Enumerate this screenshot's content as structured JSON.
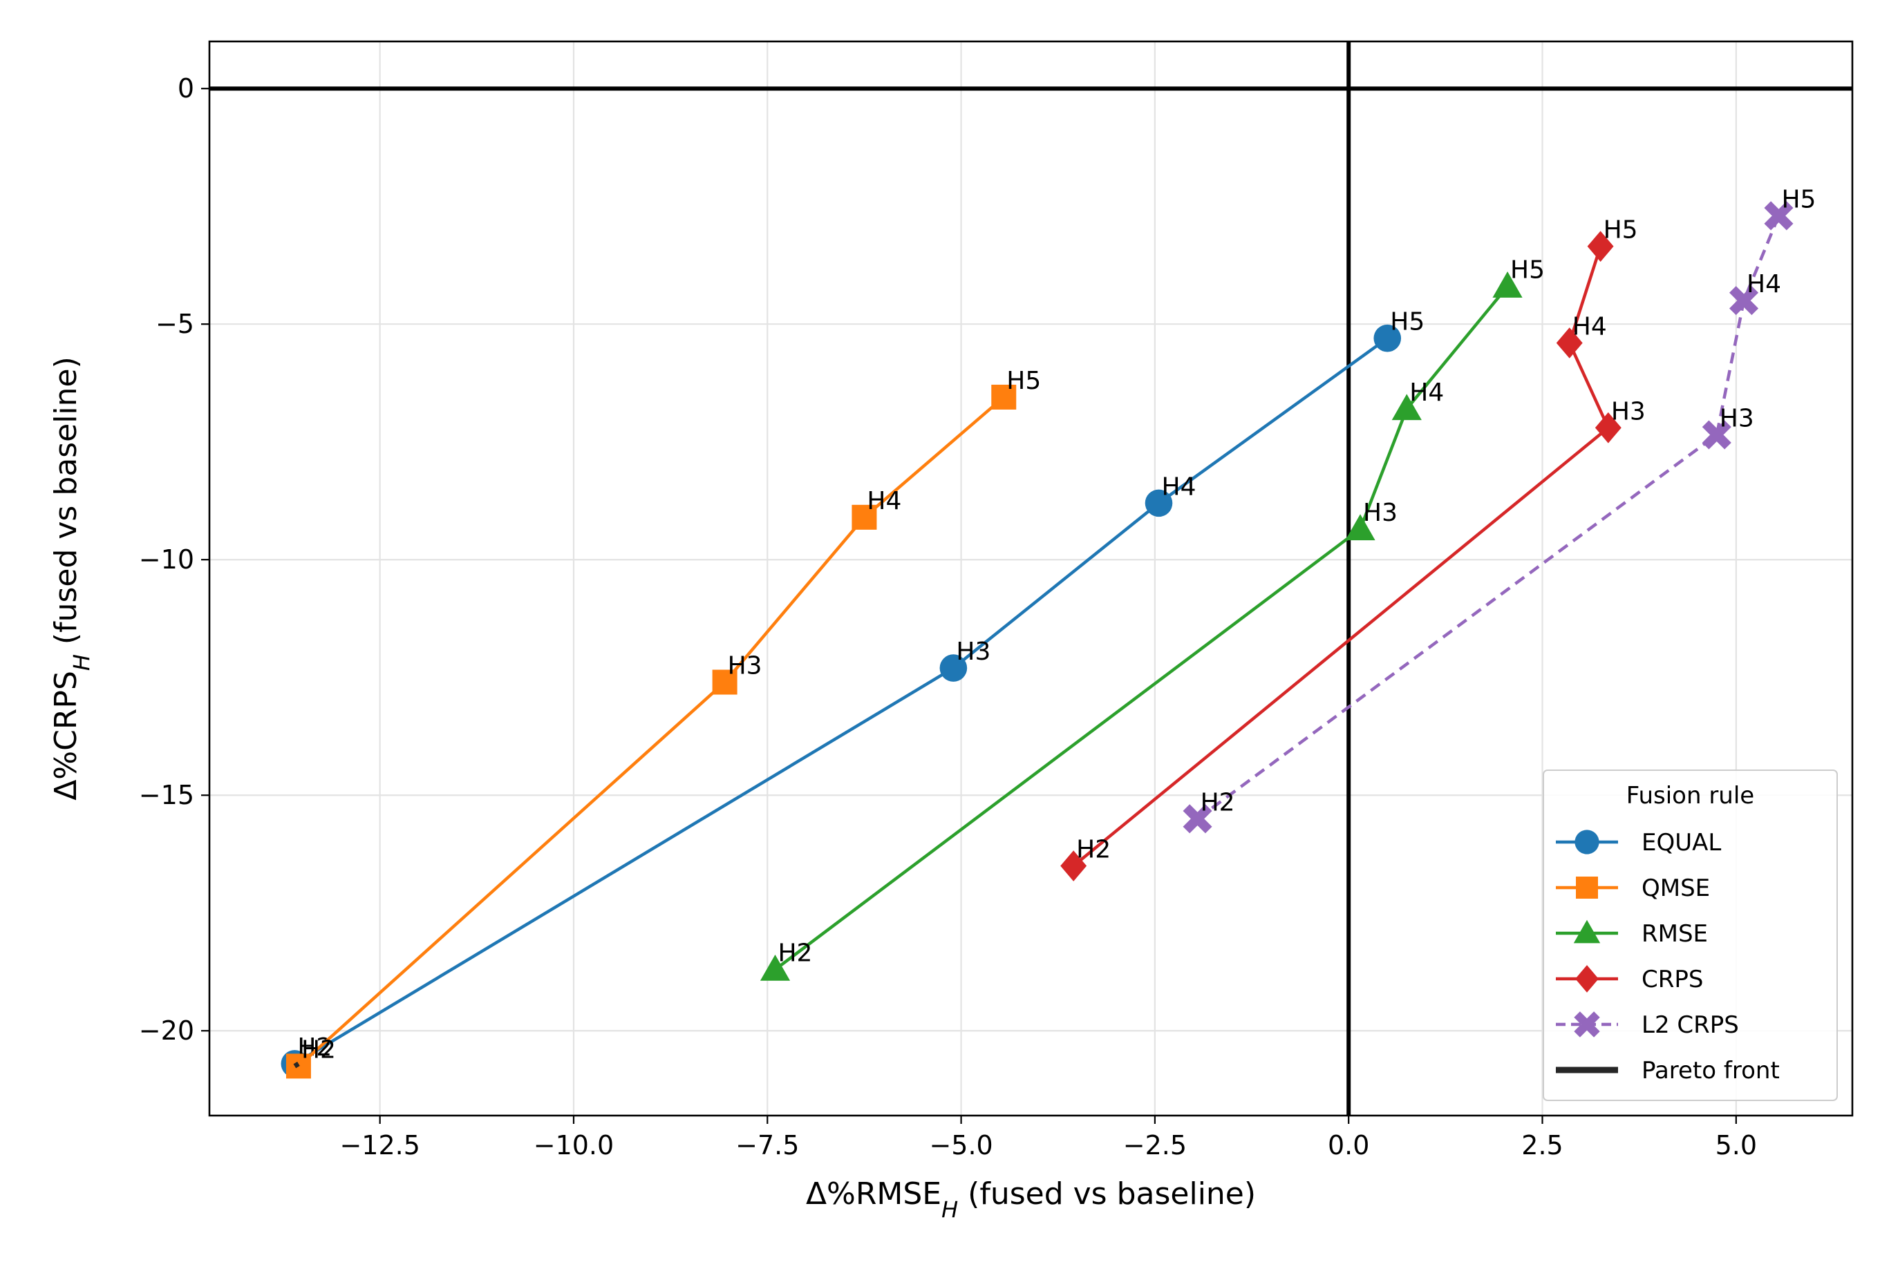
{
  "chart_data": {
    "type": "line",
    "title": "",
    "xlabel": "Δ%RMSE_H (fused vs baseline)",
    "ylabel": "Δ%CRPS_H (fused vs baseline)",
    "xlabel_main": "Δ%RMSE",
    "xlabel_sub": "H",
    "xlabel_rest": " (fused vs baseline)",
    "ylabel_main": "Δ%CRPS",
    "ylabel_sub": "H",
    "ylabel_rest": " (fused vs baseline)",
    "xlim": [
      -14.7,
      6.5
    ],
    "ylim": [
      -21.8,
      1.0
    ],
    "xticks": [
      -12.5,
      -10.0,
      -7.5,
      -5.0,
      -2.5,
      0.0,
      2.5,
      5.0
    ],
    "xtick_labels": [
      "−12.5",
      "−10.0",
      "−7.5",
      "−5.0",
      "−2.5",
      "0.0",
      "2.5",
      "5.0"
    ],
    "yticks": [
      0,
      -5,
      -10,
      -15,
      -20
    ],
    "ytick_labels": [
      "0",
      "−5",
      "−10",
      "−15",
      "−20"
    ],
    "grid": true,
    "reference_lines": {
      "x": 0,
      "y": 0
    },
    "legend": {
      "title": "Fusion rule",
      "position": "lower-right"
    },
    "series": [
      {
        "name": "EQUAL",
        "color": "#1f77b4",
        "marker": "circle",
        "dashed": false,
        "points": [
          {
            "label": "H2",
            "x": -13.6,
            "y": -20.7
          },
          {
            "label": "H3",
            "x": -5.1,
            "y": -12.3
          },
          {
            "label": "H4",
            "x": -2.45,
            "y": -8.8
          },
          {
            "label": "H5",
            "x": 0.5,
            "y": -5.3
          }
        ]
      },
      {
        "name": "QMSE",
        "color": "#ff7f0e",
        "marker": "square",
        "dashed": false,
        "points": [
          {
            "label": "H2",
            "x": -13.55,
            "y": -20.75
          },
          {
            "label": "H3",
            "x": -8.05,
            "y": -12.6
          },
          {
            "label": "H4",
            "x": -6.25,
            "y": -9.1
          },
          {
            "label": "H5",
            "x": -4.45,
            "y": -6.55
          }
        ]
      },
      {
        "name": "RMSE",
        "color": "#2ca02c",
        "marker": "triangle",
        "dashed": false,
        "points": [
          {
            "label": "H2",
            "x": -7.4,
            "y": -18.7
          },
          {
            "label": "H3",
            "x": 0.15,
            "y": -9.35
          },
          {
            "label": "H4",
            "x": 0.75,
            "y": -6.8
          },
          {
            "label": "H5",
            "x": 2.05,
            "y": -4.2
          }
        ]
      },
      {
        "name": "CRPS",
        "color": "#d62728",
        "marker": "diamond",
        "dashed": false,
        "points": [
          {
            "label": "H2",
            "x": -3.55,
            "y": -16.5
          },
          {
            "label": "H3",
            "x": 3.35,
            "y": -7.2
          },
          {
            "label": "H4",
            "x": 2.85,
            "y": -5.4
          },
          {
            "label": "H5",
            "x": 3.25,
            "y": -3.35
          }
        ]
      },
      {
        "name": "L2 CRPS",
        "color": "#9467bd",
        "marker": "x",
        "dashed": true,
        "points": [
          {
            "label": "H2",
            "x": -1.95,
            "y": -15.5
          },
          {
            "label": "H3",
            "x": 4.75,
            "y": -7.35
          },
          {
            "label": "H4",
            "x": 5.1,
            "y": -4.5
          },
          {
            "label": "H5",
            "x": 5.55,
            "y": -2.7
          }
        ]
      }
    ],
    "pareto_front": {
      "name": "Pareto front",
      "color": "#262626",
      "points": [
        {
          "x": -13.6,
          "y": -20.75
        },
        {
          "x": -13.55,
          "y": -20.7
        }
      ]
    }
  }
}
